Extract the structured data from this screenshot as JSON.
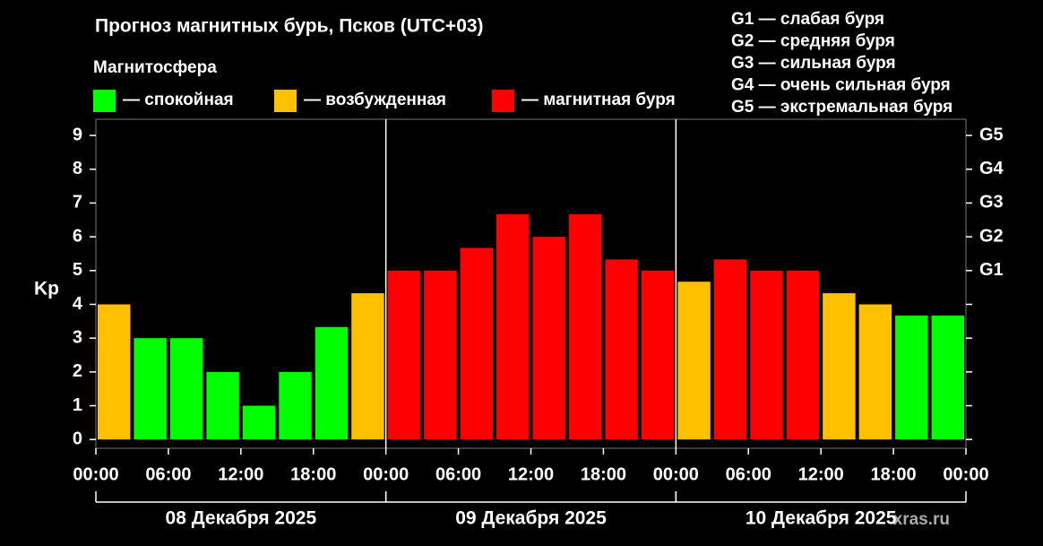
{
  "chart_data": {
    "type": "bar",
    "title": "Прогноз магнитных бурь, Псков (UTC+03)",
    "legend_title": "Магнитосфера",
    "legend": [
      {
        "color": "#00ff00",
        "label": "— спокойная"
      },
      {
        "color": "#ffc000",
        "label": "— возбужденная"
      },
      {
        "color": "#ff0000",
        "label": "— магнитная буря"
      }
    ],
    "storm_levels": [
      "G1 — слабая буря",
      "G2 — средняя буря",
      "G3 — сильная буря",
      "G4 — очень сильная буря",
      "G5 — экстремальная буря"
    ],
    "y_label": "Kp",
    "watermark": "xras.ru",
    "x": [
      0,
      3,
      6,
      9,
      12,
      15,
      18,
      21,
      24,
      27,
      30,
      33,
      36,
      39,
      42,
      45,
      48,
      51,
      54,
      57,
      60,
      63,
      66,
      69
    ],
    "bar_width": 3,
    "values": [
      4,
      3,
      3,
      2,
      1,
      2,
      3.33,
      4.33,
      5,
      5,
      5.67,
      6.67,
      6,
      6.67,
      5.33,
      5,
      4.67,
      5.33,
      5,
      5,
      4.33,
      4,
      3.67,
      3.67
    ],
    "colors": [
      "#ffc000",
      "#00ff00",
      "#00ff00",
      "#00ff00",
      "#00ff00",
      "#00ff00",
      "#00ff00",
      "#ffc000",
      "#ff0000",
      "#ff0000",
      "#ff0000",
      "#ff0000",
      "#ff0000",
      "#ff0000",
      "#ff0000",
      "#ff0000",
      "#ffc000",
      "#ff0000",
      "#ff0000",
      "#ff0000",
      "#ffc000",
      "#ffc000",
      "#00ff00",
      "#00ff00"
    ],
    "xlim": [
      0,
      72
    ],
    "xticks": [
      {
        "value": 0,
        "label": "00:00"
      },
      {
        "value": 6,
        "label": "06:00"
      },
      {
        "value": 12,
        "label": "12:00"
      },
      {
        "value": 18,
        "label": "18:00"
      },
      {
        "value": 24,
        "label": "00:00"
      },
      {
        "value": 30,
        "label": "06:00"
      },
      {
        "value": 36,
        "label": "12:00"
      },
      {
        "value": 42,
        "label": "18:00"
      },
      {
        "value": 48,
        "label": "00:00"
      },
      {
        "value": 54,
        "label": "06:00"
      },
      {
        "value": 60,
        "label": "12:00"
      },
      {
        "value": 66,
        "label": "18:00"
      },
      {
        "value": 72,
        "label": "00:00"
      }
    ],
    "days": [
      {
        "start": 0,
        "end": 24,
        "label": "08 Декабря 2025"
      },
      {
        "start": 24,
        "end": 48,
        "label": "09 Декабря 2025"
      },
      {
        "start": 48,
        "end": 72,
        "label": "10 Декабря 2025"
      }
    ],
    "ylim": [
      -0.26,
      9.48
    ],
    "yticks": [
      0,
      1,
      2,
      3,
      4,
      5,
      6,
      7,
      8,
      9
    ],
    "y2ticks": [
      {
        "value": 5,
        "label": "G1"
      },
      {
        "value": 6,
        "label": "G2"
      },
      {
        "value": 7,
        "label": "G3"
      },
      {
        "value": 8,
        "label": "G4"
      },
      {
        "value": 9,
        "label": "G5"
      }
    ]
  }
}
